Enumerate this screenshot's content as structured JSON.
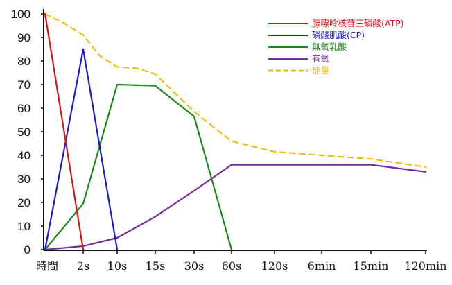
{
  "chart_data": {
    "type": "line",
    "categories": [
      "時間",
      "2s",
      "10s",
      "15s",
      "30s",
      "60s",
      "120s",
      "6min",
      "15min",
      "120min"
    ],
    "ylim": [
      0,
      100
    ],
    "yticks": [
      0,
      10,
      20,
      30,
      40,
      50,
      60,
      70,
      80,
      90,
      100
    ],
    "grid": false,
    "legend_position": "top-right",
    "series": [
      {
        "name": "腺嘌呤核苷三磷酸(ATP)",
        "color": "#dd1111",
        "style": "solid",
        "x": [
          0,
          1
        ],
        "y": [
          100,
          0
        ]
      },
      {
        "name": "磷酸肌酸(CP)",
        "color": "#1a1ad0",
        "style": "solid",
        "x": [
          0,
          1,
          2
        ],
        "y": [
          0,
          85,
          0
        ]
      },
      {
        "name": "無氧乳酸",
        "color": "#1a8a1a",
        "style": "solid",
        "x": [
          0,
          1,
          2,
          3,
          4,
          5
        ],
        "y": [
          0,
          19.5,
          70,
          69.5,
          56.5,
          0
        ]
      },
      {
        "name": "有氧",
        "color": "#7a2aa0",
        "style": "solid",
        "x": [
          0,
          1,
          2,
          3,
          4,
          5,
          6,
          7,
          8,
          9
        ],
        "y": [
          0,
          1.5,
          5,
          14,
          25,
          36,
          36,
          36,
          36,
          33
        ]
      },
      {
        "name": "能量",
        "color": "#f5b800",
        "style": "dashed",
        "x": [
          0,
          0.5,
          1,
          1.5,
          2,
          2.5,
          3,
          4,
          5,
          6,
          7,
          8,
          9
        ],
        "y": [
          100,
          96,
          91,
          82,
          77.5,
          77,
          74.5,
          58.5,
          46,
          41.5,
          40,
          38.5,
          35
        ]
      }
    ]
  }
}
